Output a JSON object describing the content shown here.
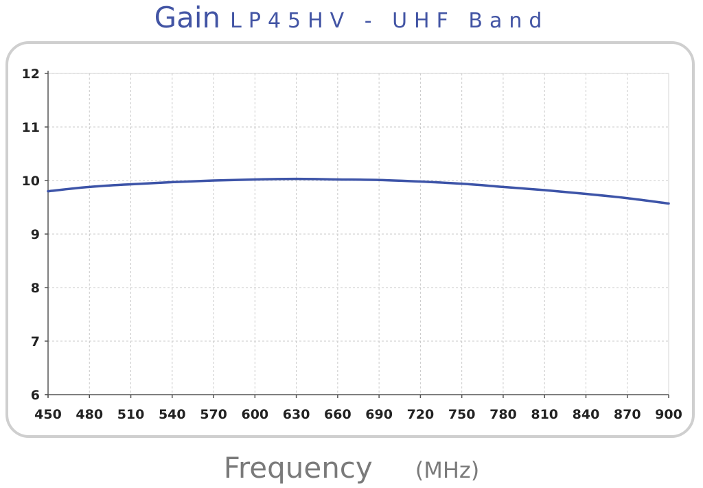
{
  "chart_data": {
    "type": "line",
    "title": "Gain",
    "subtitle": "LP45HV - UHF Band",
    "xlabel": "Frequency",
    "xunit": "(MHz)",
    "ylabel": "",
    "xlim": [
      450,
      900
    ],
    "ylim": [
      6,
      12
    ],
    "xticks": [
      450,
      480,
      510,
      540,
      570,
      600,
      630,
      660,
      690,
      720,
      750,
      780,
      810,
      840,
      870,
      900
    ],
    "yticks": [
      6,
      7,
      8,
      9,
      10,
      11,
      12
    ],
    "grid": true,
    "series": [
      {
        "color": "#3d54a8",
        "x": [
          450,
          480,
          510,
          540,
          570,
          600,
          630,
          660,
          690,
          720,
          750,
          780,
          810,
          840,
          870,
          900
        ],
        "values": [
          9.8,
          9.88,
          9.93,
          9.97,
          10.0,
          10.02,
          10.03,
          10.02,
          10.01,
          9.98,
          9.94,
          9.88,
          9.82,
          9.75,
          9.67,
          9.57
        ]
      }
    ]
  }
}
